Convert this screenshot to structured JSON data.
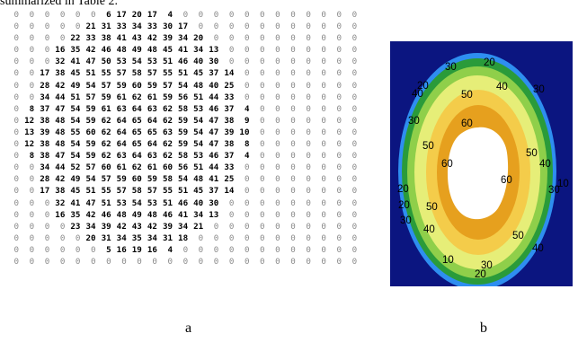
{
  "caption_top": "summarized in Table 2.",
  "panels": {
    "a": "a",
    "b": "b"
  },
  "grid_matrix": [
    [
      0,
      0,
      0,
      0,
      0,
      0,
      6,
      17,
      20,
      17,
      4,
      0,
      0,
      0,
      0,
      0,
      0,
      0,
      0,
      0,
      0,
      0,
      0
    ],
    [
      0,
      0,
      0,
      0,
      0,
      21,
      31,
      33,
      34,
      33,
      30,
      17,
      0,
      0,
      0,
      0,
      0,
      0,
      0,
      0,
      0,
      0,
      0
    ],
    [
      0,
      0,
      0,
      0,
      22,
      33,
      38,
      41,
      43,
      42,
      39,
      34,
      20,
      0,
      0,
      0,
      0,
      0,
      0,
      0,
      0,
      0,
      0
    ],
    [
      0,
      0,
      0,
      16,
      35,
      42,
      46,
      48,
      49,
      48,
      45,
      41,
      34,
      13,
      0,
      0,
      0,
      0,
      0,
      0,
      0,
      0,
      0
    ],
    [
      0,
      0,
      0,
      32,
      41,
      47,
      50,
      53,
      54,
      53,
      51,
      46,
      40,
      30,
      0,
      0,
      0,
      0,
      0,
      0,
      0,
      0,
      0
    ],
    [
      0,
      0,
      17,
      38,
      45,
      51,
      55,
      57,
      58,
      57,
      55,
      51,
      45,
      37,
      14,
      0,
      0,
      0,
      0,
      0,
      0,
      0,
      0
    ],
    [
      0,
      0,
      28,
      42,
      49,
      54,
      57,
      59,
      60,
      59,
      57,
      54,
      48,
      40,
      25,
      0,
      0,
      0,
      0,
      0,
      0,
      0,
      0
    ],
    [
      0,
      0,
      34,
      44,
      51,
      57,
      59,
      61,
      62,
      61,
      59,
      56,
      51,
      44,
      33,
      0,
      0,
      0,
      0,
      0,
      0,
      0,
      0
    ],
    [
      0,
      8,
      37,
      47,
      54,
      59,
      61,
      63,
      64,
      63,
      62,
      58,
      53,
      46,
      37,
      4,
      0,
      0,
      0,
      0,
      0,
      0,
      0
    ],
    [
      0,
      12,
      38,
      48,
      54,
      59,
      62,
      64,
      65,
      64,
      62,
      59,
      54,
      47,
      38,
      9,
      0,
      0,
      0,
      0,
      0,
      0,
      0
    ],
    [
      0,
      13,
      39,
      48,
      55,
      60,
      62,
      64,
      65,
      65,
      63,
      59,
      54,
      47,
      39,
      10,
      0,
      0,
      0,
      0,
      0,
      0,
      0
    ],
    [
      0,
      12,
      38,
      48,
      54,
      59,
      62,
      64,
      65,
      64,
      62,
      59,
      54,
      47,
      38,
      8,
      0,
      0,
      0,
      0,
      0,
      0,
      0
    ],
    [
      0,
      8,
      38,
      47,
      54,
      59,
      62,
      63,
      64,
      63,
      62,
      58,
      53,
      46,
      37,
      4,
      0,
      0,
      0,
      0,
      0,
      0,
      0
    ],
    [
      0,
      0,
      34,
      44,
      52,
      57,
      60,
      61,
      62,
      61,
      60,
      56,
      51,
      44,
      33,
      0,
      0,
      0,
      0,
      0,
      0,
      0,
      0
    ],
    [
      0,
      0,
      28,
      42,
      49,
      54,
      57,
      59,
      60,
      59,
      58,
      54,
      48,
      41,
      25,
      0,
      0,
      0,
      0,
      0,
      0,
      0,
      0
    ],
    [
      0,
      0,
      17,
      38,
      45,
      51,
      55,
      57,
      58,
      57,
      55,
      51,
      45,
      37,
      14,
      0,
      0,
      0,
      0,
      0,
      0,
      0,
      0
    ],
    [
      0,
      0,
      0,
      32,
      41,
      47,
      51,
      53,
      54,
      53,
      51,
      46,
      40,
      30,
      0,
      0,
      0,
      0,
      0,
      0,
      0,
      0,
      0
    ],
    [
      0,
      0,
      0,
      16,
      35,
      42,
      46,
      48,
      49,
      48,
      46,
      41,
      34,
      13,
      0,
      0,
      0,
      0,
      0,
      0,
      0,
      0,
      0
    ],
    [
      0,
      0,
      0,
      0,
      23,
      34,
      39,
      42,
      43,
      42,
      39,
      34,
      21,
      0,
      0,
      0,
      0,
      0,
      0,
      0,
      0,
      0,
      0
    ],
    [
      0,
      0,
      0,
      0,
      0,
      20,
      31,
      34,
      35,
      34,
      31,
      18,
      0,
      0,
      0,
      0,
      0,
      0,
      0,
      0,
      0,
      0,
      0
    ],
    [
      0,
      0,
      0,
      0,
      0,
      0,
      5,
      16,
      19,
      16,
      4,
      0,
      0,
      0,
      0,
      0,
      0,
      0,
      0,
      0,
      0,
      0,
      0
    ],
    [
      0,
      0,
      0,
      0,
      0,
      0,
      0,
      0,
      0,
      0,
      0,
      0,
      0,
      0,
      0,
      0,
      0,
      0,
      0,
      0,
      0,
      0,
      0
    ]
  ],
  "heatmap_colors": {
    "background": "#0b1580",
    "band_10": "#2e8ef0",
    "band_20": "#2a9b3a",
    "band_30": "#8fcf4a",
    "band_40": "#e6ee78",
    "band_50": "#f4cc4a",
    "band_60": "#e6a01e",
    "center": "#ffffff"
  },
  "contour_labels": [
    {
      "text": "30",
      "pos": "top-left"
    },
    {
      "text": "20",
      "pos": "top-right"
    },
    {
      "text": "20",
      "pos": "upper-left"
    },
    {
      "text": "40",
      "pos": "upper-left-outer"
    },
    {
      "text": "50",
      "pos": "upper-mid"
    },
    {
      "text": "40",
      "pos": "upper-right"
    },
    {
      "text": "30",
      "pos": "right-upper"
    },
    {
      "text": "30",
      "pos": "left-upper"
    },
    {
      "text": "60",
      "pos": "center-top"
    },
    {
      "text": "50",
      "pos": "left-mid"
    },
    {
      "text": "60",
      "pos": "left-inner"
    },
    {
      "text": "50",
      "pos": "right-mid"
    },
    {
      "text": "40",
      "pos": "right-outer"
    },
    {
      "text": "60",
      "pos": "right-inner"
    },
    {
      "text": "30",
      "pos": "right-lower"
    },
    {
      "text": "10",
      "pos": "right-edge"
    },
    {
      "text": "20",
      "pos": "left-lower-1"
    },
    {
      "text": "50",
      "pos": "left-lower"
    },
    {
      "text": "20",
      "pos": "left-lower-2"
    },
    {
      "text": "30",
      "pos": "left-lower-3"
    },
    {
      "text": "40",
      "pos": "bottom-left"
    },
    {
      "text": "50",
      "pos": "bottom-right"
    },
    {
      "text": "40",
      "pos": "bottom-right-outer"
    },
    {
      "text": "10",
      "pos": "bottom-left-edge"
    },
    {
      "text": "30",
      "pos": "bottom-mid"
    },
    {
      "text": "20",
      "pos": "bottom-mid-lower"
    }
  ]
}
